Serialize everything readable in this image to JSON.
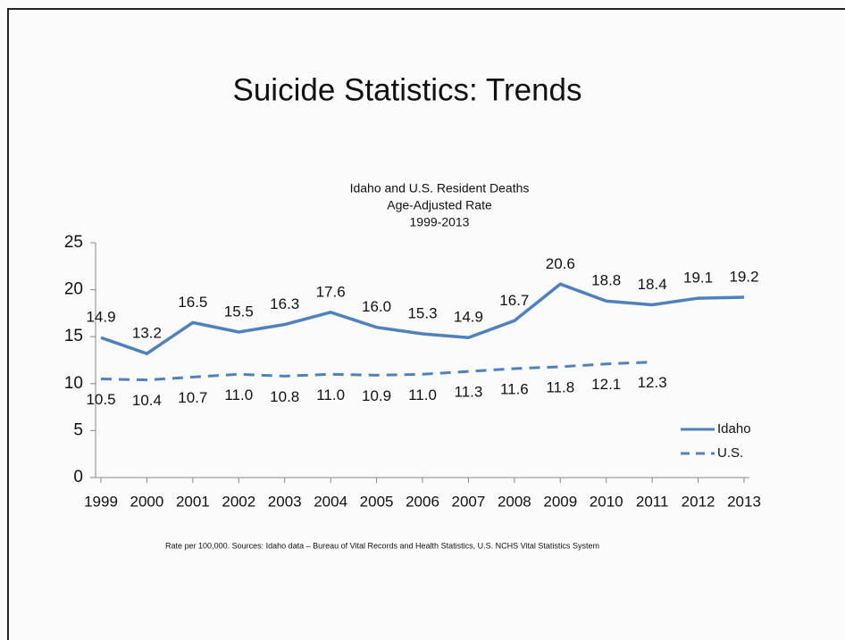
{
  "slide_title": "Suicide Statistics: Trends",
  "chart_data": {
    "type": "line",
    "title": [
      "Idaho and U.S. Resident Deaths",
      "Age-Adjusted Rate",
      "1999-2013"
    ],
    "categories": [
      "1999",
      "2000",
      "2001",
      "2002",
      "2003",
      "2004",
      "2005",
      "2006",
      "2007",
      "2008",
      "2009",
      "2010",
      "2011",
      "2012",
      "2013"
    ],
    "series": [
      {
        "name": "Idaho",
        "color": "#4f81bd",
        "dash": "solid",
        "values": [
          14.9,
          13.2,
          16.5,
          15.5,
          16.3,
          17.6,
          16.0,
          15.3,
          14.9,
          16.7,
          20.6,
          18.8,
          18.4,
          19.1,
          19.2
        ],
        "value_labels": [
          "14.9",
          "13.2",
          "16.5",
          "15.5",
          "16.3",
          "17.6",
          "16.0",
          "15.3",
          "14.9",
          "16.7",
          "20.6",
          "18.8",
          "18.4",
          "19.1",
          "19.2"
        ]
      },
      {
        "name": "U.S.",
        "color": "#4f81bd",
        "dash": "dashed",
        "values": [
          10.5,
          10.4,
          10.7,
          11.0,
          10.8,
          11.0,
          10.9,
          11.0,
          11.3,
          11.6,
          11.8,
          12.1,
          12.3,
          null,
          null
        ],
        "value_labels": [
          "10.5",
          "10.4",
          "10.7",
          "11.0",
          "10.8",
          "11.0",
          "10.9",
          "11.0",
          "11.3",
          "11.6",
          "11.8",
          "12.1",
          "12.3",
          null,
          null
        ]
      }
    ],
    "ylim": [
      0,
      25
    ],
    "yticks": [
      0,
      5,
      10,
      15,
      20,
      25
    ],
    "legend": "right",
    "note": "Rate per 100,000. Sources: Idaho data – Bureau of Vital Records and Health Statistics, U.S. NCHS Vital Statistics System"
  }
}
